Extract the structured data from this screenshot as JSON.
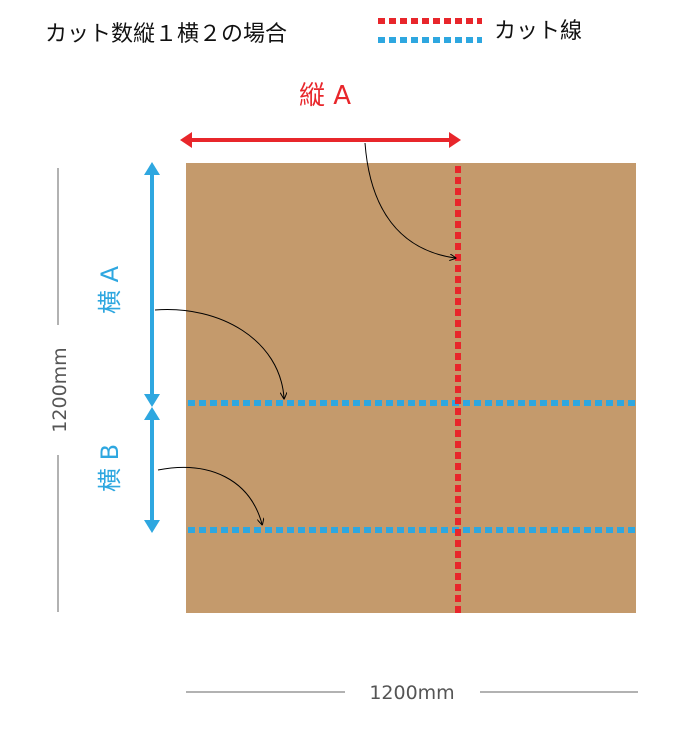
{
  "title": "カット数縦１横２の場合",
  "legend": {
    "label": "カット線",
    "colors": {
      "vertical_cut": "#e8262b",
      "horizontal_cut": "#2ea7e0"
    }
  },
  "labels": {
    "vertical_a": "縦 A",
    "horizontal_a": "横 A",
    "horizontal_b": "横 B"
  },
  "dimensions": {
    "height": "1200mm",
    "width": "1200mm"
  },
  "colors": {
    "board": "#c49a6c",
    "red": "#e8262b",
    "blue": "#2ea7e0",
    "dimension": "#999999"
  }
}
